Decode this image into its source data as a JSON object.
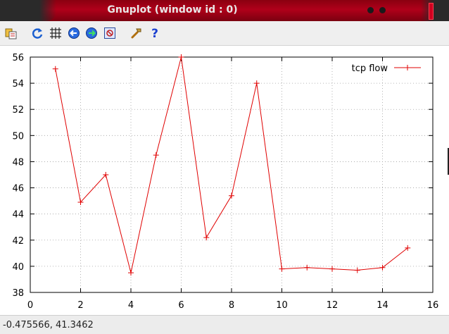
{
  "window": {
    "title": "Gnuplot (window id : 0)"
  },
  "toolbar": {
    "buttons": [
      "copy-to-clipboard-icon",
      "replot-icon",
      "grid-icon",
      "previous-zoom-icon",
      "next-zoom-icon",
      "autoscale-icon",
      "options-icon",
      "help-icon"
    ]
  },
  "statusbar": {
    "coords": "-0.475566,  41.3462"
  },
  "colors": {
    "series": "#e00000",
    "grid": "#a0a0a0",
    "titlebar": "#a30016"
  },
  "chart_data": {
    "type": "line",
    "title": "",
    "xlabel": "",
    "ylabel": "",
    "xlim": [
      0,
      16
    ],
    "ylim": [
      38,
      56
    ],
    "xticks": [
      0,
      2,
      4,
      6,
      8,
      10,
      12,
      14,
      16
    ],
    "yticks": [
      38,
      40,
      42,
      44,
      46,
      48,
      50,
      52,
      54,
      56
    ],
    "grid": true,
    "legend": "top-right",
    "series": [
      {
        "name": "tcp flow",
        "marker": "+",
        "x": [
          1,
          2,
          3,
          4,
          5,
          6,
          7,
          8,
          9,
          10,
          11,
          12,
          13,
          14,
          15
        ],
        "y": [
          55.1,
          44.9,
          47.0,
          39.5,
          48.5,
          56.0,
          42.2,
          45.4,
          54.0,
          39.8,
          39.9,
          39.8,
          39.7,
          39.9,
          41.4
        ]
      }
    ]
  }
}
